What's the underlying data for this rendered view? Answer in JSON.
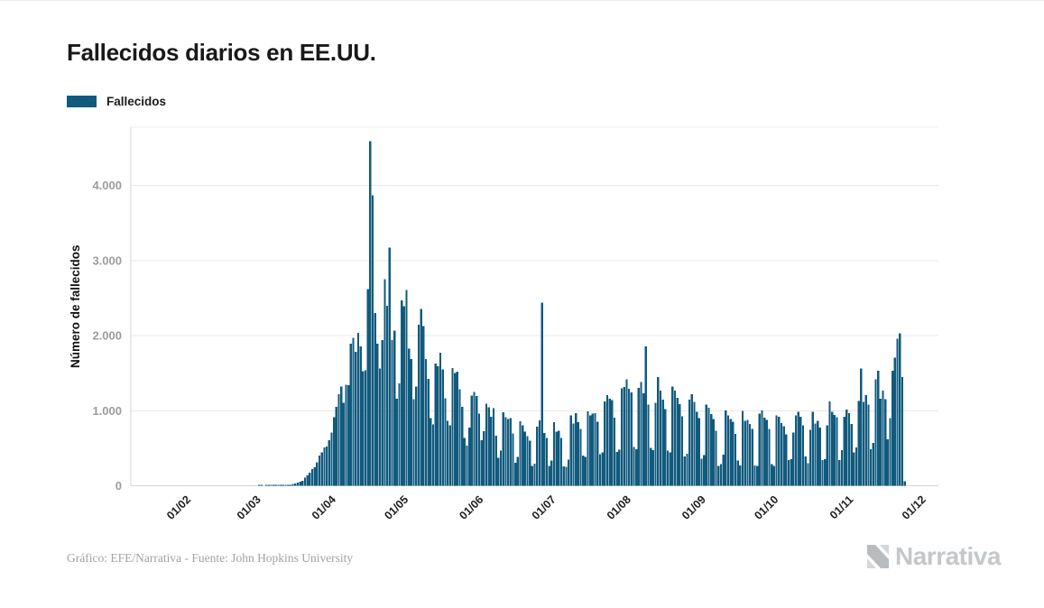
{
  "header": {
    "title": "Fallecidos diarios en EE.UU."
  },
  "legend": {
    "label": "Fallecidos",
    "color": "#115a7e"
  },
  "footer": {
    "credit": "Gráfico: EFE/Narrativa - Fuente: John Hopkins University",
    "logo_text": "Narrativa"
  },
  "chart_data": {
    "type": "bar",
    "title": "Fallecidos diarios en EE.UU.",
    "series_name": "Fallecidos",
    "xlabel": "",
    "ylabel": "Número de fallecidos",
    "bar_color": "#115a7e",
    "grid": true,
    "legend_position": "top-left",
    "ylim": [
      0,
      4750
    ],
    "start_date": "2020-01-27",
    "frequency": "daily",
    "y_ticks": [
      {
        "value": 0,
        "label": "0"
      },
      {
        "value": 1000,
        "label": "1.000"
      },
      {
        "value": 2000,
        "label": "2.000"
      },
      {
        "value": 3000,
        "label": "3.000"
      },
      {
        "value": 4000,
        "label": "4.000"
      }
    ],
    "x_ticks": [
      {
        "label": "01/02",
        "day_offset": 5
      },
      {
        "label": "01/03",
        "day_offset": 34
      },
      {
        "label": "01/04",
        "day_offset": 65
      },
      {
        "label": "01/05",
        "day_offset": 95
      },
      {
        "label": "01/06",
        "day_offset": 126
      },
      {
        "label": "01/07",
        "day_offset": 156
      },
      {
        "label": "01/08",
        "day_offset": 187
      },
      {
        "label": "01/09",
        "day_offset": 218
      },
      {
        "label": "01/10",
        "day_offset": 248
      },
      {
        "label": "01/11",
        "day_offset": 279
      },
      {
        "label": "01/12",
        "day_offset": 309
      }
    ],
    "values": [
      0,
      0,
      0,
      0,
      0,
      0,
      0,
      0,
      0,
      0,
      0,
      0,
      0,
      0,
      0,
      0,
      0,
      0,
      0,
      0,
      0,
      0,
      0,
      0,
      0,
      0,
      0,
      0,
      0,
      0,
      0,
      0,
      0,
      1,
      1,
      0,
      4,
      2,
      3,
      2,
      4,
      3,
      6,
      5,
      8,
      10,
      15,
      22,
      30,
      41,
      57,
      68,
      110,
      141,
      177,
      225,
      247,
      312,
      403,
      445,
      511,
      525,
      604,
      708,
      912,
      1049,
      1220,
      1320,
      1104,
      1344,
      1342,
      1895,
      1970,
      1783,
      2035,
      1857,
      1528,
      1539,
      2618,
      4591,
      3872,
      2299,
      1891,
      1561,
      1939,
      2751,
      2396,
      3176,
      1940,
      2065,
      1157,
      1366,
      2471,
      2390,
      2611,
      1826,
      1691,
      1154,
      1324,
      2144,
      2353,
      2129,
      1687,
      1422,
      902,
      820,
      1630,
      1595,
      1771,
      1553,
      1167,
      865,
      808,
      1568,
      1500,
      1518,
      1285,
      1054,
      638,
      532,
      774,
      1199,
      1250,
      1193,
      960,
      605,
      730,
      1093,
      1045,
      921,
      1036,
      670,
      373,
      470,
      980,
      911,
      890,
      903,
      697,
      309,
      382,
      858,
      805,
      722,
      660,
      602,
      267,
      297,
      785,
      874,
      2437,
      702,
      638,
      267,
      335,
      845,
      724,
      734,
      636,
      261,
      253,
      351,
      935,
      829,
      966,
      849,
      756,
      403,
      384,
      993,
      940,
      963,
      969,
      853,
      420,
      447,
      1126,
      1205,
      1158,
      1140,
      908,
      451,
      483,
      1297,
      1319,
      1420,
      1293,
      1244,
      515,
      487,
      1302,
      1380,
      1230,
      1855,
      1081,
      505,
      477,
      1108,
      1450,
      1268,
      1149,
      1021,
      466,
      445,
      1324,
      1270,
      1174,
      1088,
      925,
      390,
      427,
      1147,
      1218,
      1118,
      983,
      900,
      363,
      406,
      1084,
      1037,
      954,
      891,
      733,
      267,
      287,
      417,
      1006,
      940,
      891,
      853,
      690,
      336,
      273,
      996,
      863,
      877,
      823,
      756,
      270,
      267,
      963,
      1002,
      907,
      878,
      755,
      287,
      263,
      940,
      920,
      836,
      796,
      684,
      340,
      357,
      712,
      935,
      985,
      917,
      804,
      390,
      302,
      745,
      987,
      830,
      866,
      776,
      341,
      357,
      803,
      1124,
      985,
      941,
      913,
      340,
      477,
      920,
      1014,
      967,
      826,
      445,
      510,
      1130,
      1562,
      1120,
      1210,
      1083,
      489,
      570,
      1420,
      1535,
      1161,
      1267,
      1154,
      620,
      904,
      1535,
      1707,
      1962,
      2032,
      1450,
      60
    ]
  }
}
